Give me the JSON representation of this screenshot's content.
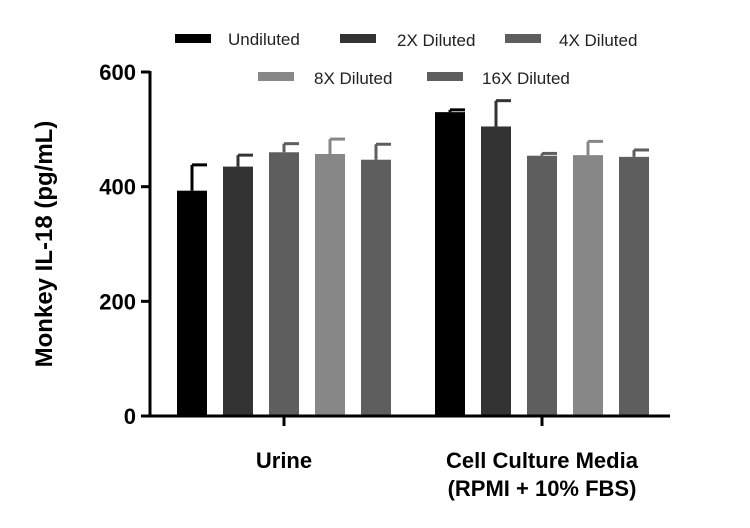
{
  "chart_data": {
    "type": "bar",
    "title": "",
    "xlabel": "",
    "ylabel": "Monkey IL-18 (pg/mL)",
    "ylim": [
      0,
      600
    ],
    "yticks": [
      0,
      200,
      400,
      600
    ],
    "grid": false,
    "legend_position": "top",
    "categories": [
      {
        "lines": [
          "Urine"
        ]
      },
      {
        "lines": [
          "Cell Culture Media",
          "(RPMI + 10% FBS)"
        ]
      }
    ],
    "series": [
      {
        "name": "Undiluted",
        "color": "#000000",
        "values": [
          393,
          530
        ],
        "errors": [
          45,
          4
        ]
      },
      {
        "name": "2X Diluted",
        "color": "#333333",
        "values": [
          435,
          505
        ],
        "errors": [
          20,
          45
        ]
      },
      {
        "name": "4X Diluted",
        "color": "#5e5e5e",
        "values": [
          460,
          454
        ],
        "errors": [
          15,
          4
        ]
      },
      {
        "name": "8X Diluted",
        "color": "#878787",
        "values": [
          457,
          455
        ],
        "errors": [
          26,
          24
        ]
      },
      {
        "name": "16X Diluted",
        "color": "#5e5e5e",
        "values": [
          447,
          452
        ],
        "errors": [
          27,
          12
        ]
      }
    ]
  }
}
